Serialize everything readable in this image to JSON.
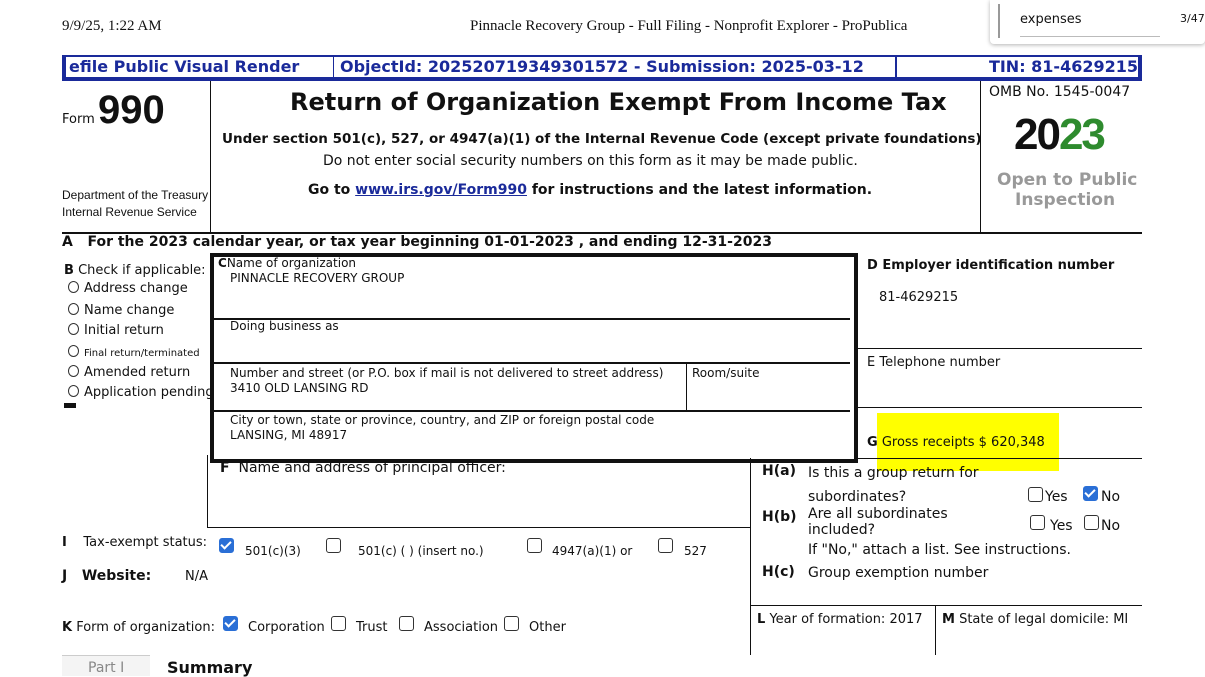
{
  "print_header": {
    "datetime": "9/9/25, 1:22 AM",
    "title": "Pinnacle Recovery Group - Full Filing - Nonprofit Explorer - ProPublica"
  },
  "find_bar": {
    "query": "expenses",
    "count": "3/47"
  },
  "banner": {
    "render": "efile Public Visual Render",
    "object": "ObjectId: 202520719349301572 - Submission: 2025-03-12",
    "tin": "TIN: 81-4629215"
  },
  "form": {
    "form_label": "Form",
    "number": "990",
    "dept1": "Department of the Treasury",
    "dept2": "Internal Revenue Service",
    "title": "Return of Organization Exempt From Income Tax",
    "sub1": "Under section 501(c), 527, or 4947(a)(1) of the Internal Revenue Code (except private foundations)",
    "sub2": "Do not enter social security numbers on this form as it may be made public.",
    "goto_pre": "Go to ",
    "goto_link": "www.irs.gov/Form990",
    "goto_post": " for instructions and the latest information.",
    "omb": "OMB No. 1545-0047",
    "year_a": "20",
    "year_b": "23",
    "open": "Open to Public",
    "inspection": "Inspection"
  },
  "rowA": {
    "letter": "A",
    "text": "For the 2023 calendar year, or tax year beginning 01-01-2023   , and ending 12-31-2023"
  },
  "rowB": {
    "letter": "B",
    "label": "Check if applicable:",
    "items": [
      "Address change",
      "Name change",
      "Initial return",
      "Final return/terminated",
      "Amended return",
      "Application pending"
    ]
  },
  "rowC": {
    "letter": "C",
    "name_label": "Name of organization",
    "name": "PINNACLE RECOVERY GROUP",
    "dba_label": "Doing business as",
    "street_label": "Number and street (or P.O. box if mail is not delivered to street address)",
    "room_label": "Room/suite",
    "street": "3410 OLD LANSING RD",
    "city_label": "City or town, state or province, country, and ZIP or foreign postal code",
    "city": "LANSING, MI  48917"
  },
  "rowD": {
    "label": "D Employer identification number",
    "ein": "81-4629215"
  },
  "rowE": {
    "label": "E Telephone number"
  },
  "rowG": {
    "letter": "G",
    "text": "Gross receipts $ 620,348",
    "highlight": "#ffff00"
  },
  "rowF": {
    "letter": "F",
    "label": "Name and address of principal officer:"
  },
  "rowH": {
    "ha": "H(a)",
    "ha_text1": "Is this a group return for",
    "ha_text2": "subordinates?",
    "hb": "H(b)",
    "hb_text1": "Are all subordinates",
    "hb_text2": "included?",
    "hb_note": "If \"No,\" attach a list. See instructions.",
    "hc": "H(c)",
    "hc_text": "Group exemption number",
    "yes": "Yes",
    "no": "No",
    "ha_no_checked": true
  },
  "rowI": {
    "letter": "I",
    "label": "Tax-exempt status:",
    "opts": [
      "501(c)(3)",
      "501(c) (   ) (insert no.)",
      "4947(a)(1) or",
      "527"
    ],
    "checked": "501(c)(3)"
  },
  "rowJ": {
    "letter": "J",
    "label": "Website:",
    "value": "N/A"
  },
  "rowK": {
    "letter": "K",
    "label": "Form of organization:",
    "opts": [
      "Corporation",
      "Trust",
      "Association",
      "Other"
    ],
    "checked": "Corporation"
  },
  "rowL": {
    "letter": "L",
    "text": "Year of formation: 2017"
  },
  "rowM": {
    "letter": "M",
    "text": "State of legal domicile: MI"
  },
  "part": {
    "label": "Part I",
    "title": "Summary"
  }
}
